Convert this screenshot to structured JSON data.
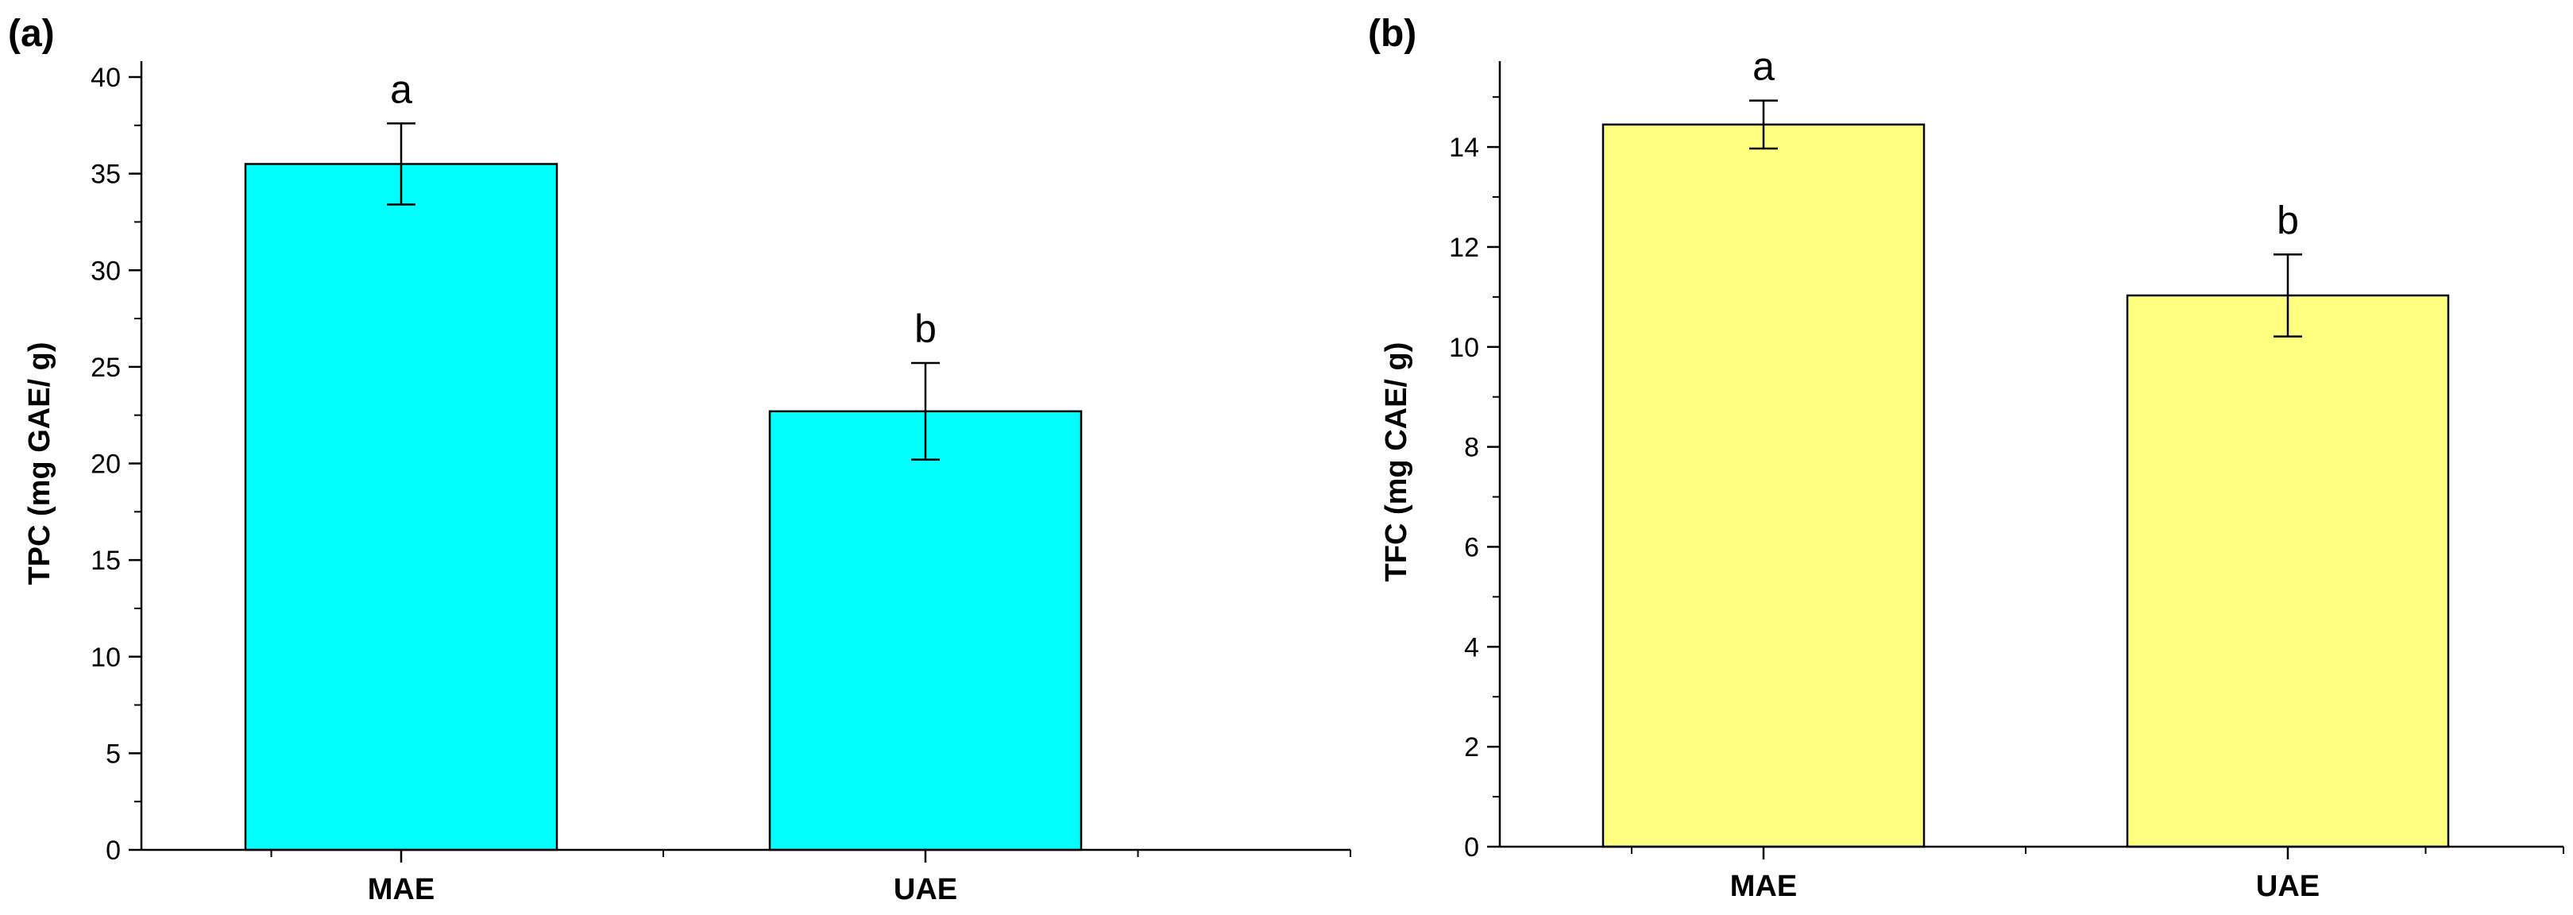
{
  "chart_data": [
    {
      "type": "bar",
      "panel_label": "(a)",
      "title": "",
      "xlabel": "",
      "ylabel": "TPC (mg GAE/ g)",
      "ylim": [
        0,
        40
      ],
      "yticks": [
        0,
        5,
        10,
        15,
        20,
        25,
        30,
        35,
        40
      ],
      "categories": [
        "MAE",
        "UAE"
      ],
      "values": [
        35.5,
        22.7
      ],
      "errors": [
        2.1,
        2.5
      ],
      "significance": [
        "a",
        "b"
      ],
      "bar_color": "#00FFFF",
      "grid": false
    },
    {
      "type": "bar",
      "panel_label": "(b)",
      "title": "",
      "xlabel": "",
      "ylabel": "TFC (mg CAE/ g)",
      "ylim": [
        0,
        15.4
      ],
      "yticks": [
        0,
        2,
        4,
        6,
        8,
        10,
        12,
        14
      ],
      "categories": [
        "MAE",
        "UAE"
      ],
      "values": [
        14.45,
        11.03
      ],
      "errors": [
        0.48,
        0.82
      ],
      "significance": [
        "a",
        "b"
      ],
      "bar_color": "#FFFF80",
      "grid": false
    }
  ]
}
